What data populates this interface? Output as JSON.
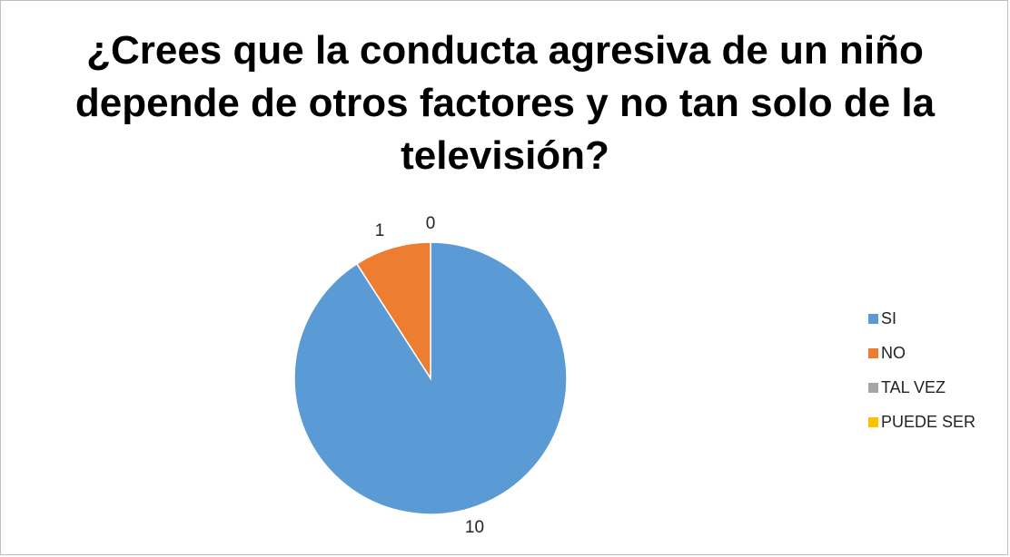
{
  "chart_data": {
    "type": "pie",
    "title": "¿Crees que la conducta agresiva de un niño depende de otros factores y no tan solo de la televisión?",
    "categories": [
      "SI",
      "NO",
      "TAL VEZ",
      "PUEDE SER"
    ],
    "values": [
      10,
      1,
      0,
      0
    ],
    "data_labels": [
      "10",
      "1",
      "0",
      ""
    ],
    "colors": [
      "#5b9bd5",
      "#ed7d31",
      "#a5a5a5",
      "#ffc000"
    ],
    "legend_position": "right"
  }
}
